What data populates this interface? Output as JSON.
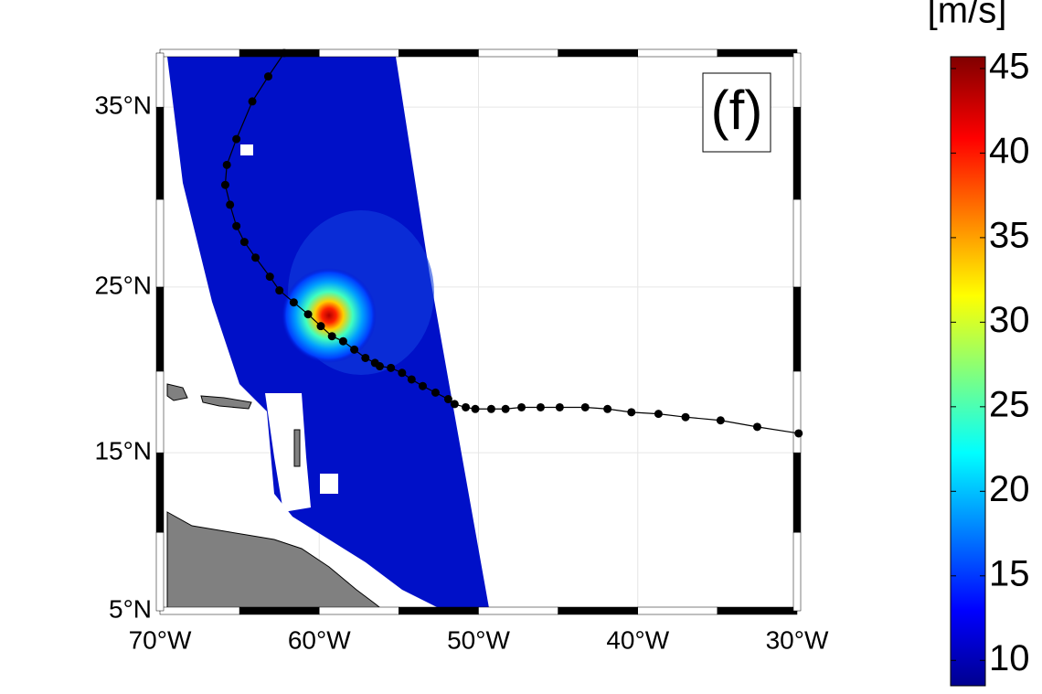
{
  "panel_label": "(f)",
  "map": {
    "xlim": [
      -70,
      -30
    ],
    "ylim": [
      5,
      37.8
    ],
    "xticks": [
      {
        "value": -70,
        "label": "70°W"
      },
      {
        "value": -60,
        "label": "60°W"
      },
      {
        "value": -50,
        "label": "50°W"
      },
      {
        "value": -40,
        "label": "40°W"
      },
      {
        "value": -30,
        "label": "30°W"
      }
    ],
    "yticks": [
      {
        "value": 5,
        "label": "5°N"
      },
      {
        "value": 15,
        "label": "15°N"
      },
      {
        "value": 25,
        "label": "25°N"
      },
      {
        "value": 35,
        "label": "35°N"
      }
    ],
    "grid": true,
    "track": {
      "lon": [
        -29.9,
        -32.5,
        -34.8,
        -37.0,
        -38.7,
        -40.4,
        -41.9,
        -43.3,
        -44.9,
        -46.1,
        -47.3,
        -48.3,
        -49.2,
        -50.2,
        -50.8,
        -51.5,
        -51.9,
        -52.7,
        -53.5,
        -54.2,
        -54.8,
        -55.5,
        -56.2,
        -56.5,
        -57.1,
        -57.8,
        -58.5,
        -59.2,
        -59.9,
        -60.7,
        -61.6,
        -62.5,
        -63.1,
        -64.0,
        -64.7,
        -65.2,
        -65.6,
        -65.9,
        -65.8,
        -65.2,
        -64.2,
        -63.2,
        -62.2
      ],
      "lat": [
        16.2,
        16.6,
        17.0,
        17.2,
        17.4,
        17.5,
        17.7,
        17.8,
        17.8,
        17.8,
        17.8,
        17.7,
        17.7,
        17.7,
        17.8,
        18.0,
        18.3,
        18.7,
        19.1,
        19.5,
        19.9,
        20.2,
        20.3,
        20.5,
        20.8,
        21.3,
        21.8,
        22.1,
        22.7,
        23.4,
        24.1,
        24.8,
        25.6,
        26.7,
        27.6,
        28.5,
        29.7,
        30.8,
        31.9,
        33.3,
        35.3,
        36.6,
        37.8
      ]
    }
  },
  "colorbar": {
    "label": "[m/s]",
    "clim": [
      8.5,
      45.7
    ],
    "ticks": [
      10,
      15,
      20,
      25,
      30,
      35,
      40,
      45
    ]
  }
}
